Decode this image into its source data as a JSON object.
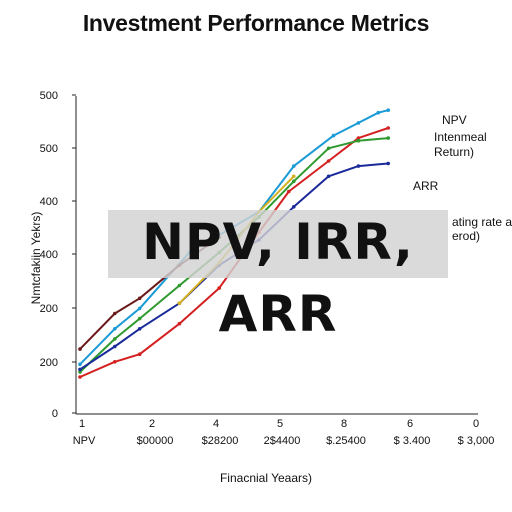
{
  "title": "Investment Performance Metrics",
  "overlay_text": "NPV, IRR, ARR",
  "chart_data": {
    "type": "line",
    "title": "Investment Performance Metrics",
    "xlabel": "Finacnial Yeaars)",
    "ylabel": "Nmtcfakiin Yekrs)",
    "x_tick_labels": [
      "1",
      "2",
      "4",
      "5",
      "8",
      "6",
      "0"
    ],
    "x_sub_labels": [
      "NPV",
      "$00000",
      "$28200",
      "2$4400",
      "$.25400",
      "$ 3.400",
      "$ 3,000"
    ],
    "y_tick_labels": [
      "0",
      "200",
      "200",
      "400",
      "400",
      "500",
      "500"
    ],
    "x_range": [
      0,
      7
    ],
    "y_range": [
      0,
      600
    ],
    "series": [
      {
        "name": "NPV",
        "color": "#1a9ad6",
        "x": [
          0.0,
          0.7,
          1.2,
          2.2,
          3.6,
          4.3,
          5.1,
          5.6,
          6.0,
          6.2
        ],
        "y": [
          80,
          150,
          190,
          300,
          380,
          470,
          530,
          555,
          575,
          580
        ]
      },
      {
        "name": "",
        "color": "#d42020",
        "x": [
          0.0,
          0.7,
          1.2,
          2.0,
          2.8,
          3.6,
          4.2,
          5.0,
          5.6,
          6.2
        ],
        "y": [
          55,
          85,
          100,
          160,
          230,
          340,
          420,
          480,
          525,
          545
        ]
      },
      {
        "name": "",
        "color": "#2e9a2e",
        "x": [
          0.0,
          0.7,
          1.2,
          2.0,
          2.8,
          3.6,
          4.3,
          5.0,
          5.6,
          6.2
        ],
        "y": [
          65,
          130,
          170,
          235,
          300,
          370,
          440,
          505,
          520,
          525
        ]
      },
      {
        "name": "",
        "color": "#1a2a9a",
        "x": [
          0.0,
          0.7,
          1.2,
          2.0,
          2.8,
          3.6,
          4.3,
          5.0,
          5.6,
          6.2
        ],
        "y": [
          70,
          115,
          150,
          200,
          275,
          325,
          390,
          450,
          470,
          475
        ]
      },
      {
        "name": "",
        "color": "#6a1a1a",
        "x": [
          0.0,
          0.7,
          1.2,
          2.0,
          2.8
        ],
        "y": [
          110,
          180,
          210,
          275,
          330
        ]
      },
      {
        "name": "",
        "color": "#d4b020",
        "x": [
          2.0,
          2.8,
          3.6,
          4.3
        ],
        "y": [
          200,
          280,
          380,
          450
        ]
      }
    ],
    "legend": [
      {
        "label": "NPV"
      },
      {
        "label": "Intenmeal"
      },
      {
        "label": "Return)"
      },
      {
        "label": "ARR"
      },
      {
        "label": "ating rate a"
      },
      {
        "label": "erod)"
      }
    ],
    "grid": false,
    "legend_placement": "right, inside"
  }
}
